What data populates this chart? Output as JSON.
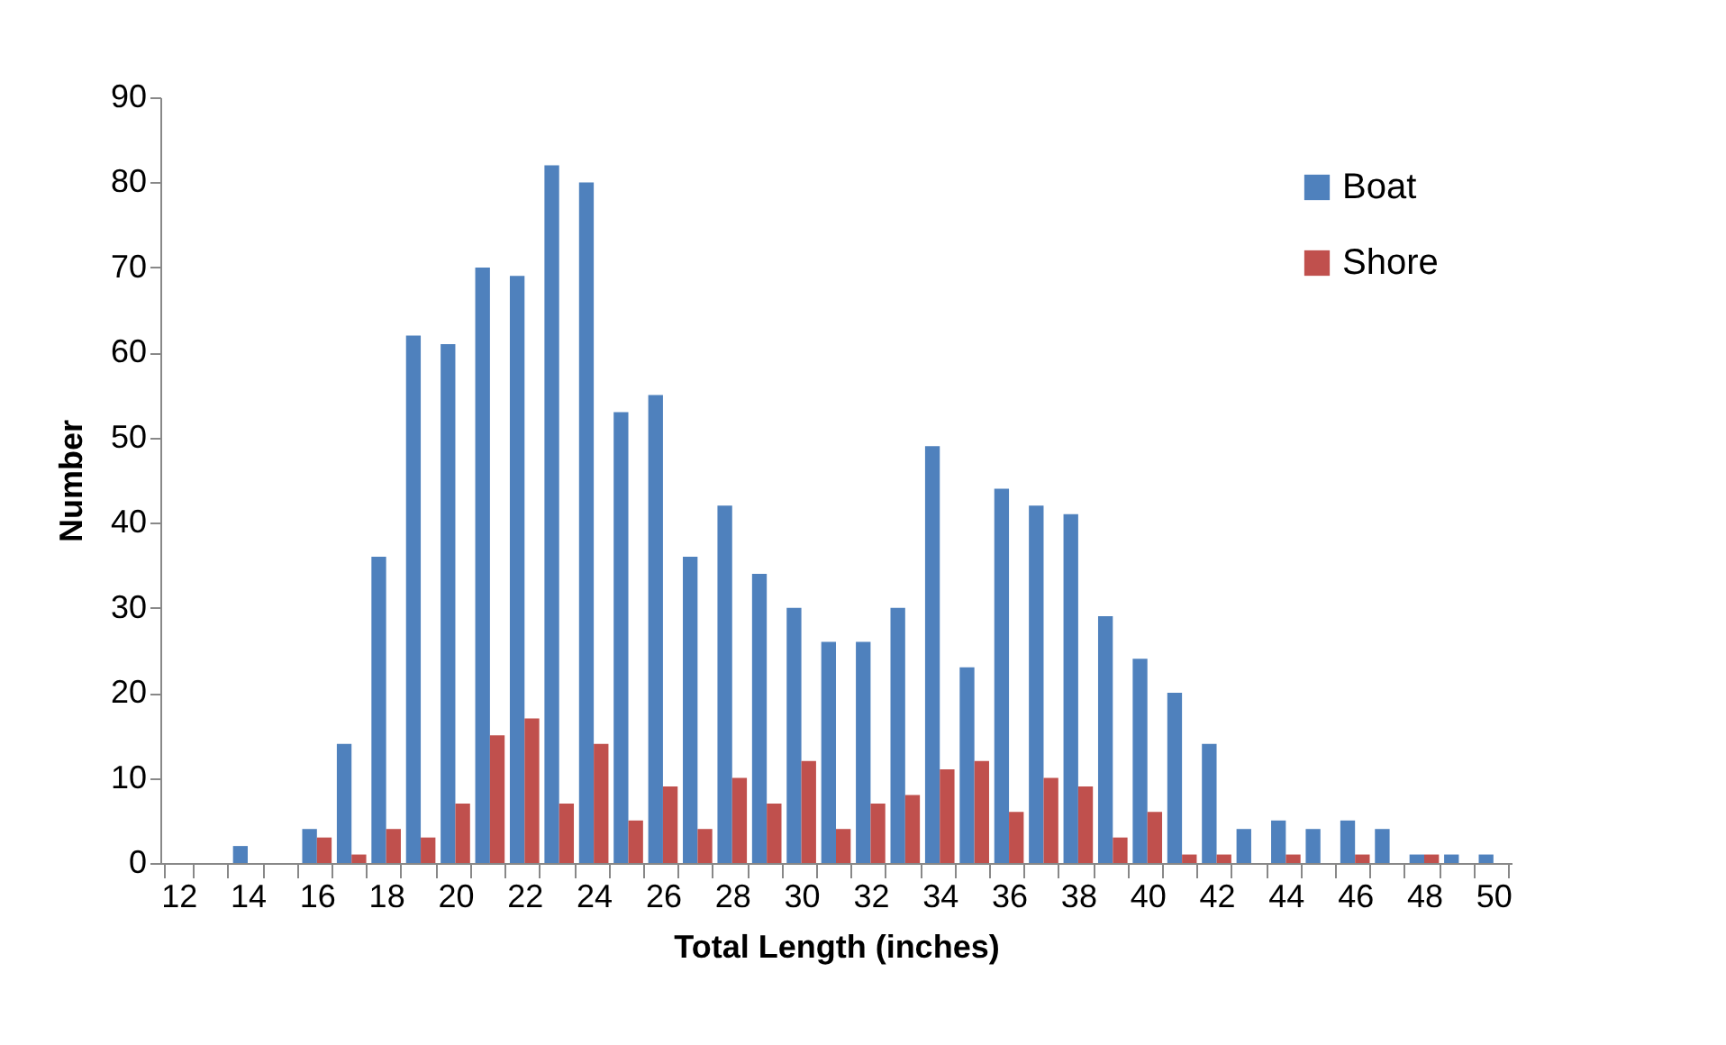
{
  "chart_data": {
    "type": "bar",
    "xlabel": "Total Length (inches)",
    "ylabel": "Number",
    "categories": [
      "12",
      null,
      "14",
      null,
      "16",
      null,
      "18",
      null,
      "20",
      null,
      "22",
      null,
      "24",
      null,
      "26",
      null,
      "28",
      null,
      "30",
      null,
      "32",
      null,
      "34",
      null,
      "36",
      null,
      "38",
      null,
      "40",
      null,
      "42",
      null,
      "44",
      null,
      "46",
      null,
      "48",
      null,
      "50"
    ],
    "series": [
      {
        "name": "Boat",
        "color": "#4f81bd",
        "values": [
          0,
          0,
          2,
          0,
          4,
          14,
          36,
          62,
          61,
          70,
          69,
          82,
          80,
          53,
          55,
          36,
          42,
          34,
          30,
          26,
          26,
          30,
          49,
          23,
          44,
          42,
          41,
          29,
          24,
          20,
          14,
          4,
          5,
          4,
          5,
          4,
          1,
          1,
          1
        ]
      },
      {
        "name": "Shore",
        "color": "#c0504d",
        "values": [
          0,
          0,
          0,
          0,
          3,
          1,
          4,
          3,
          7,
          15,
          17,
          7,
          14,
          5,
          9,
          4,
          10,
          7,
          12,
          4,
          7,
          8,
          11,
          12,
          6,
          10,
          9,
          3,
          6,
          1,
          1,
          0,
          1,
          0,
          1,
          0,
          1,
          0,
          0
        ]
      }
    ],
    "ylim": [
      0,
      90
    ],
    "yticks": [
      0,
      10,
      20,
      30,
      40,
      50,
      60,
      70,
      80,
      90
    ],
    "grid": false,
    "legend": "top right"
  }
}
